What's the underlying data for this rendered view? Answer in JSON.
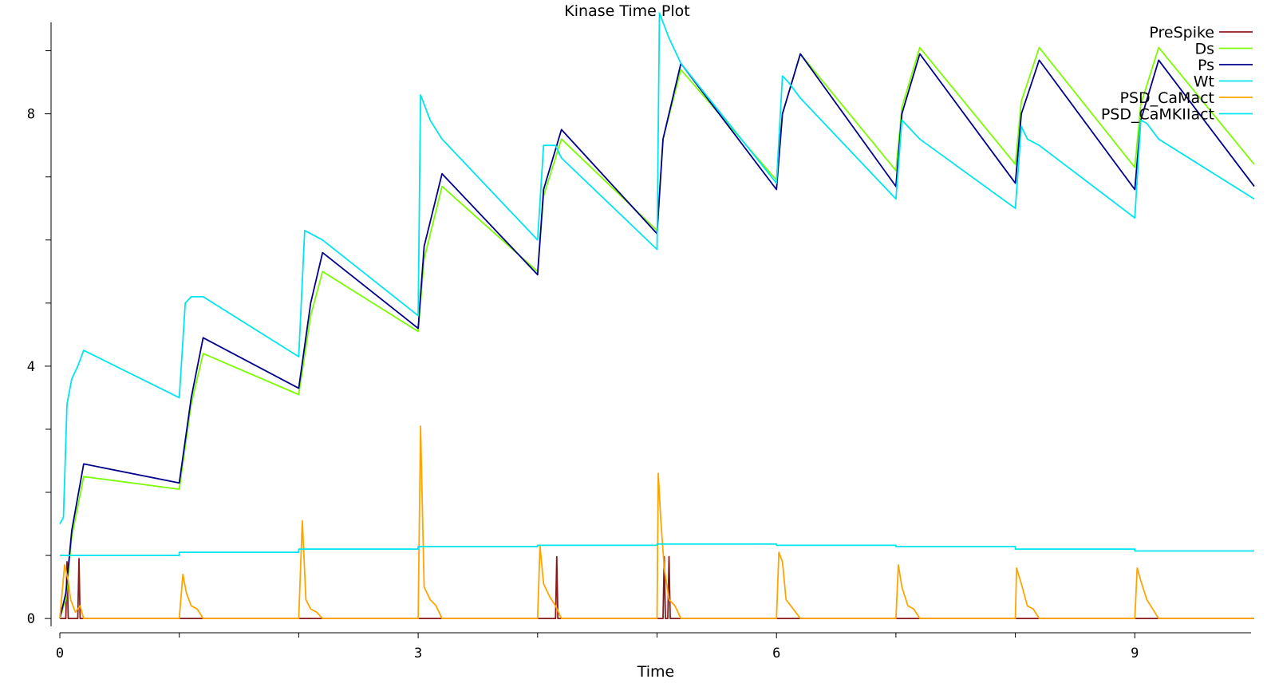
{
  "chart_data": {
    "type": "line",
    "title": "Kinase Time Plot",
    "xlabel": "Time",
    "ylabel": "",
    "xlim": [
      0,
      10
    ],
    "ylim": [
      -0.15,
      9.45
    ],
    "x_ticks": [
      0,
      3,
      6,
      9
    ],
    "x_minor_ticks": [
      1,
      2,
      4,
      5,
      7,
      8
    ],
    "y_ticks": [
      0,
      4,
      8
    ],
    "y_minor_ticks": [
      1,
      2,
      3,
      5,
      6,
      7,
      9
    ],
    "grid": false,
    "legend_position": "top-right",
    "series": [
      {
        "name": "PreSpike",
        "color": "#8b1a1a",
        "points": [
          [
            0,
            0
          ],
          [
            0.05,
            0
          ],
          [
            0.06,
            0.9
          ],
          [
            0.07,
            0
          ],
          [
            0.15,
            0
          ],
          [
            0.16,
            0.95
          ],
          [
            0.17,
            0
          ],
          [
            4.15,
            0
          ],
          [
            4.16,
            0.98
          ],
          [
            4.17,
            0
          ],
          [
            5.05,
            0
          ],
          [
            5.06,
            0.98
          ],
          [
            5.07,
            0
          ],
          [
            5.09,
            0
          ],
          [
            5.1,
            0.98
          ],
          [
            5.11,
            0
          ],
          [
            10,
            0
          ]
        ]
      },
      {
        "name": "Ds",
        "color": "#7cfc00",
        "points": [
          [
            0,
            0
          ],
          [
            0.05,
            0.3
          ],
          [
            0.1,
            1.3
          ],
          [
            0.2,
            2.25
          ],
          [
            1.0,
            2.05
          ],
          [
            1.1,
            3.4
          ],
          [
            1.2,
            4.2
          ],
          [
            2.0,
            3.55
          ],
          [
            2.1,
            4.8
          ],
          [
            2.2,
            5.5
          ],
          [
            3.0,
            4.55
          ],
          [
            3.05,
            5.7
          ],
          [
            3.2,
            6.85
          ],
          [
            4.0,
            5.5
          ],
          [
            4.05,
            6.7
          ],
          [
            4.2,
            7.6
          ],
          [
            5.0,
            6.15
          ],
          [
            5.05,
            7.6
          ],
          [
            5.2,
            8.7
          ],
          [
            6.0,
            6.95
          ],
          [
            6.05,
            8.0
          ],
          [
            6.2,
            8.95
          ],
          [
            7.0,
            7.1
          ],
          [
            7.05,
            8.1
          ],
          [
            7.2,
            9.05
          ],
          [
            8.0,
            7.2
          ],
          [
            8.05,
            8.2
          ],
          [
            8.2,
            9.05
          ],
          [
            9.0,
            7.15
          ],
          [
            9.05,
            8.15
          ],
          [
            9.2,
            9.05
          ],
          [
            10.0,
            7.2
          ]
        ]
      },
      {
        "name": "Ps",
        "color": "#00008b",
        "points": [
          [
            0,
            0
          ],
          [
            0.05,
            0.4
          ],
          [
            0.1,
            1.4
          ],
          [
            0.2,
            2.45
          ],
          [
            1.0,
            2.15
          ],
          [
            1.1,
            3.5
          ],
          [
            1.2,
            4.45
          ],
          [
            2.0,
            3.65
          ],
          [
            2.1,
            5.0
          ],
          [
            2.2,
            5.8
          ],
          [
            3.0,
            4.6
          ],
          [
            3.05,
            5.9
          ],
          [
            3.2,
            7.05
          ],
          [
            4.0,
            5.45
          ],
          [
            4.05,
            6.8
          ],
          [
            4.2,
            7.75
          ],
          [
            5.0,
            6.1
          ],
          [
            5.05,
            7.6
          ],
          [
            5.2,
            8.8
          ],
          [
            6.0,
            6.8
          ],
          [
            6.05,
            8.0
          ],
          [
            6.2,
            8.95
          ],
          [
            7.0,
            6.85
          ],
          [
            7.05,
            8.0
          ],
          [
            7.2,
            8.95
          ],
          [
            8.0,
            6.9
          ],
          [
            8.05,
            8.0
          ],
          [
            8.2,
            8.85
          ],
          [
            9.0,
            6.8
          ],
          [
            9.05,
            7.9
          ],
          [
            9.2,
            8.85
          ],
          [
            10.0,
            6.85
          ]
        ]
      },
      {
        "name": "Wt",
        "color": "#00e5ee",
        "points": [
          [
            0,
            1.5
          ],
          [
            0.03,
            1.6
          ],
          [
            0.06,
            3.4
          ],
          [
            0.1,
            3.8
          ],
          [
            0.15,
            4.0
          ],
          [
            0.2,
            4.25
          ],
          [
            1.0,
            3.5
          ],
          [
            1.05,
            5.0
          ],
          [
            1.1,
            5.1
          ],
          [
            1.2,
            5.1
          ],
          [
            2.0,
            4.15
          ],
          [
            2.05,
            6.15
          ],
          [
            2.15,
            6.05
          ],
          [
            2.2,
            6.0
          ],
          [
            3.0,
            4.8
          ],
          [
            3.02,
            8.3
          ],
          [
            3.1,
            7.9
          ],
          [
            3.2,
            7.6
          ],
          [
            4.0,
            6.0
          ],
          [
            4.05,
            7.5
          ],
          [
            4.15,
            7.5
          ],
          [
            4.2,
            7.3
          ],
          [
            5.0,
            5.85
          ],
          [
            5.02,
            9.6
          ],
          [
            5.1,
            9.2
          ],
          [
            5.2,
            8.8
          ],
          [
            6.0,
            6.9
          ],
          [
            6.05,
            8.6
          ],
          [
            6.1,
            8.5
          ],
          [
            6.2,
            8.25
          ],
          [
            7.0,
            6.65
          ],
          [
            7.05,
            7.9
          ],
          [
            7.1,
            7.8
          ],
          [
            7.2,
            7.6
          ],
          [
            8.0,
            6.5
          ],
          [
            8.05,
            7.8
          ],
          [
            8.1,
            7.6
          ],
          [
            8.2,
            7.5
          ],
          [
            9.0,
            6.35
          ],
          [
            9.05,
            7.9
          ],
          [
            9.1,
            7.85
          ],
          [
            9.2,
            7.6
          ],
          [
            10.0,
            6.65
          ]
        ]
      },
      {
        "name": "PSD_CaMact",
        "color": "#ffa500",
        "points": [
          [
            0,
            0
          ],
          [
            0.04,
            0.85
          ],
          [
            0.07,
            0.6
          ],
          [
            0.09,
            0.3
          ],
          [
            0.13,
            0.1
          ],
          [
            0.17,
            0.2
          ],
          [
            0.2,
            0
          ],
          [
            1.0,
            0
          ],
          [
            1.03,
            0.7
          ],
          [
            1.06,
            0.4
          ],
          [
            1.1,
            0.2
          ],
          [
            1.15,
            0.15
          ],
          [
            1.2,
            0
          ],
          [
            2.0,
            0
          ],
          [
            2.03,
            1.55
          ],
          [
            2.06,
            0.3
          ],
          [
            2.1,
            0.15
          ],
          [
            2.15,
            0.1
          ],
          [
            2.2,
            0
          ],
          [
            3.0,
            0
          ],
          [
            3.02,
            3.05
          ],
          [
            3.05,
            0.5
          ],
          [
            3.1,
            0.3
          ],
          [
            3.15,
            0.2
          ],
          [
            3.2,
            0
          ],
          [
            4.0,
            0
          ],
          [
            4.02,
            1.15
          ],
          [
            4.05,
            0.55
          ],
          [
            4.1,
            0.35
          ],
          [
            4.15,
            0.2
          ],
          [
            4.2,
            0
          ],
          [
            5.0,
            0
          ],
          [
            5.01,
            2.3
          ],
          [
            5.03,
            1.6
          ],
          [
            5.06,
            0.8
          ],
          [
            5.1,
            0.3
          ],
          [
            5.15,
            0.2
          ],
          [
            5.2,
            0
          ],
          [
            6.0,
            0
          ],
          [
            6.02,
            1.05
          ],
          [
            6.05,
            0.9
          ],
          [
            6.08,
            0.3
          ],
          [
            6.12,
            0.2
          ],
          [
            6.2,
            0
          ],
          [
            7.0,
            0
          ],
          [
            7.02,
            0.85
          ],
          [
            7.05,
            0.5
          ],
          [
            7.1,
            0.2
          ],
          [
            7.15,
            0.15
          ],
          [
            7.2,
            0
          ],
          [
            8.0,
            0
          ],
          [
            8.01,
            0.8
          ],
          [
            8.05,
            0.55
          ],
          [
            8.1,
            0.2
          ],
          [
            8.15,
            0.15
          ],
          [
            8.2,
            0
          ],
          [
            9.0,
            0
          ],
          [
            9.02,
            0.8
          ],
          [
            9.05,
            0.6
          ],
          [
            9.1,
            0.3
          ],
          [
            9.15,
            0.15
          ],
          [
            9.2,
            0
          ],
          [
            10.0,
            0
          ]
        ]
      },
      {
        "name": "PSD_CaMKIIact",
        "color": "#00e5ee",
        "points": [
          [
            0,
            1.0
          ],
          [
            1.0,
            1.0
          ],
          [
            1.0,
            1.05
          ],
          [
            2.0,
            1.05
          ],
          [
            2.0,
            1.1
          ],
          [
            3.0,
            1.1
          ],
          [
            3.0,
            1.14
          ],
          [
            4.0,
            1.14
          ],
          [
            4.0,
            1.16
          ],
          [
            5.0,
            1.16
          ],
          [
            5.0,
            1.18
          ],
          [
            6.0,
            1.18
          ],
          [
            6.0,
            1.16
          ],
          [
            7.0,
            1.16
          ],
          [
            7.0,
            1.14
          ],
          [
            8.0,
            1.14
          ],
          [
            8.0,
            1.1
          ],
          [
            9.0,
            1.1
          ],
          [
            9.0,
            1.07
          ],
          [
            10.0,
            1.07
          ]
        ]
      }
    ]
  }
}
